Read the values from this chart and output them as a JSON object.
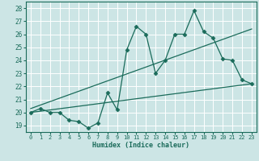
{
  "xlabel": "Humidex (Indice chaleur)",
  "ylabel": "",
  "bg_color": "#cce5e5",
  "grid_color": "#b8d8d8",
  "line_color": "#1a6b5a",
  "xlim": [
    -0.5,
    23.5
  ],
  "ylim": [
    18.5,
    28.5
  ],
  "xticks": [
    0,
    1,
    2,
    3,
    4,
    5,
    6,
    7,
    8,
    9,
    10,
    11,
    12,
    13,
    14,
    15,
    16,
    17,
    18,
    19,
    20,
    21,
    22,
    23
  ],
  "yticks": [
    19,
    20,
    21,
    22,
    23,
    24,
    25,
    26,
    27,
    28
  ],
  "data_x": [
    0,
    1,
    2,
    3,
    4,
    5,
    6,
    7,
    8,
    9,
    10,
    11,
    12,
    13,
    14,
    15,
    16,
    17,
    18,
    19,
    20,
    21,
    22,
    23
  ],
  "data_y": [
    20.0,
    20.3,
    20.0,
    20.0,
    19.4,
    19.3,
    18.8,
    19.2,
    21.5,
    20.2,
    24.8,
    26.6,
    26.0,
    23.0,
    24.0,
    26.0,
    26.0,
    27.8,
    26.2,
    25.7,
    24.1,
    24.0,
    22.5,
    22.2
  ],
  "trend1_x": [
    0,
    23
  ],
  "trend1_y": [
    20.0,
    22.2
  ],
  "trend2_x": [
    0,
    23
  ],
  "trend2_y": [
    20.3,
    26.4
  ]
}
